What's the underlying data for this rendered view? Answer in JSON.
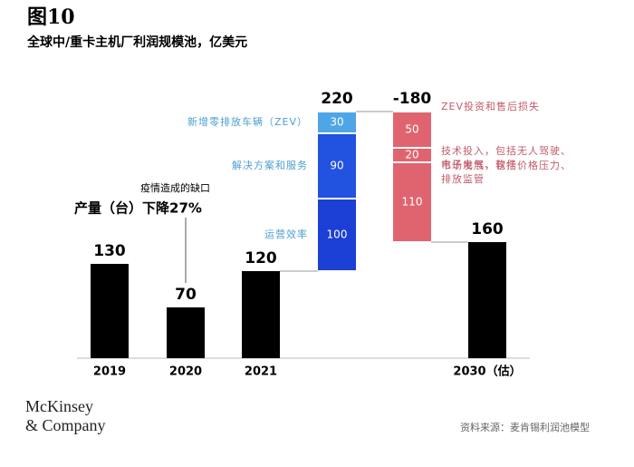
{
  "chart_data": {
    "type": "waterfall",
    "title": "图10",
    "subtitle": "全球中/重卡主机厂利润规模池，亿美元",
    "totals": {
      "categories": [
        "2019",
        "2020",
        "2021",
        "2030（估）"
      ],
      "values": [
        130,
        70,
        120,
        160
      ],
      "color": "#000000"
    },
    "increase": {
      "total": 220,
      "segments": [
        {
          "name": "运营效率",
          "value": 100,
          "color": "#1c3fd6"
        },
        {
          "name": "解决方案和服务",
          "value": 90,
          "color": "#2152e0"
        },
        {
          "name": "新增零排放车辆（ZEV）",
          "value": 30,
          "color": "#4fa6e6"
        }
      ]
    },
    "decrease": {
      "total": -180,
      "segments": [
        {
          "name": "ZEV投资和售后损失",
          "value": 50,
          "color": "#e0646f"
        },
        {
          "name": "技术投入，包括无人驾驶、电子电气、软件",
          "value": 20,
          "color": "#e0646f"
        },
        {
          "name": "市场发展，包括价格压力、排放监管",
          "value": 110,
          "color": "#e0646f"
        }
      ]
    },
    "annotation": {
      "note": "疫情造成的缺口",
      "text": "产量（台）下降27%"
    },
    "brand": [
      "McKinsey",
      "& Company"
    ],
    "source": "资料来源：麦肯锡利润池模型"
  }
}
